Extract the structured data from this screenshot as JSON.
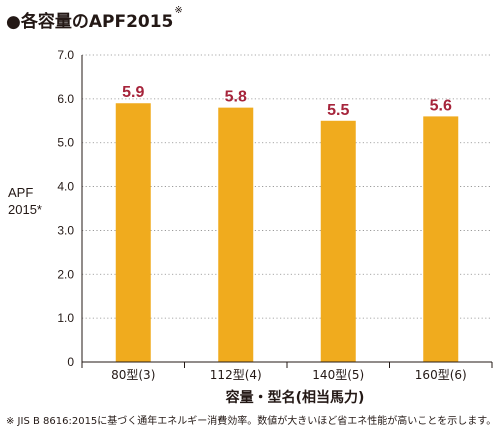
{
  "title": {
    "bullet": "●",
    "text": "各容量のAPF2015",
    "mark": "※"
  },
  "footnote": "※ JIS B 8616:2015に基づく通年エネルギー消費効率。数値が大きいほど省エネ性能が高いことを示します。",
  "colors": {
    "bar": "#f0ab1e",
    "value_label": "#a6243b",
    "axis": "#231815",
    "grid": "#8c8c8c"
  },
  "chart_data": {
    "type": "bar",
    "ylabel": "APF",
    "ylabel_unit": "2015*",
    "xlabel": "容量・型名(相当馬力)",
    "categories": [
      "80型(3)",
      "112型(4)",
      "140型(5)",
      "160型(6)"
    ],
    "values": [
      5.9,
      5.8,
      5.5,
      5.6
    ],
    "value_labels": [
      "5.9",
      "5.8",
      "5.5",
      "5.6"
    ],
    "ylim": [
      0,
      7.0
    ],
    "yticks": [
      "0",
      "1.0",
      "2.0",
      "3.0",
      "4.0",
      "5.0",
      "6.0",
      "7.0"
    ],
    "grid": "dotted horizontal"
  }
}
